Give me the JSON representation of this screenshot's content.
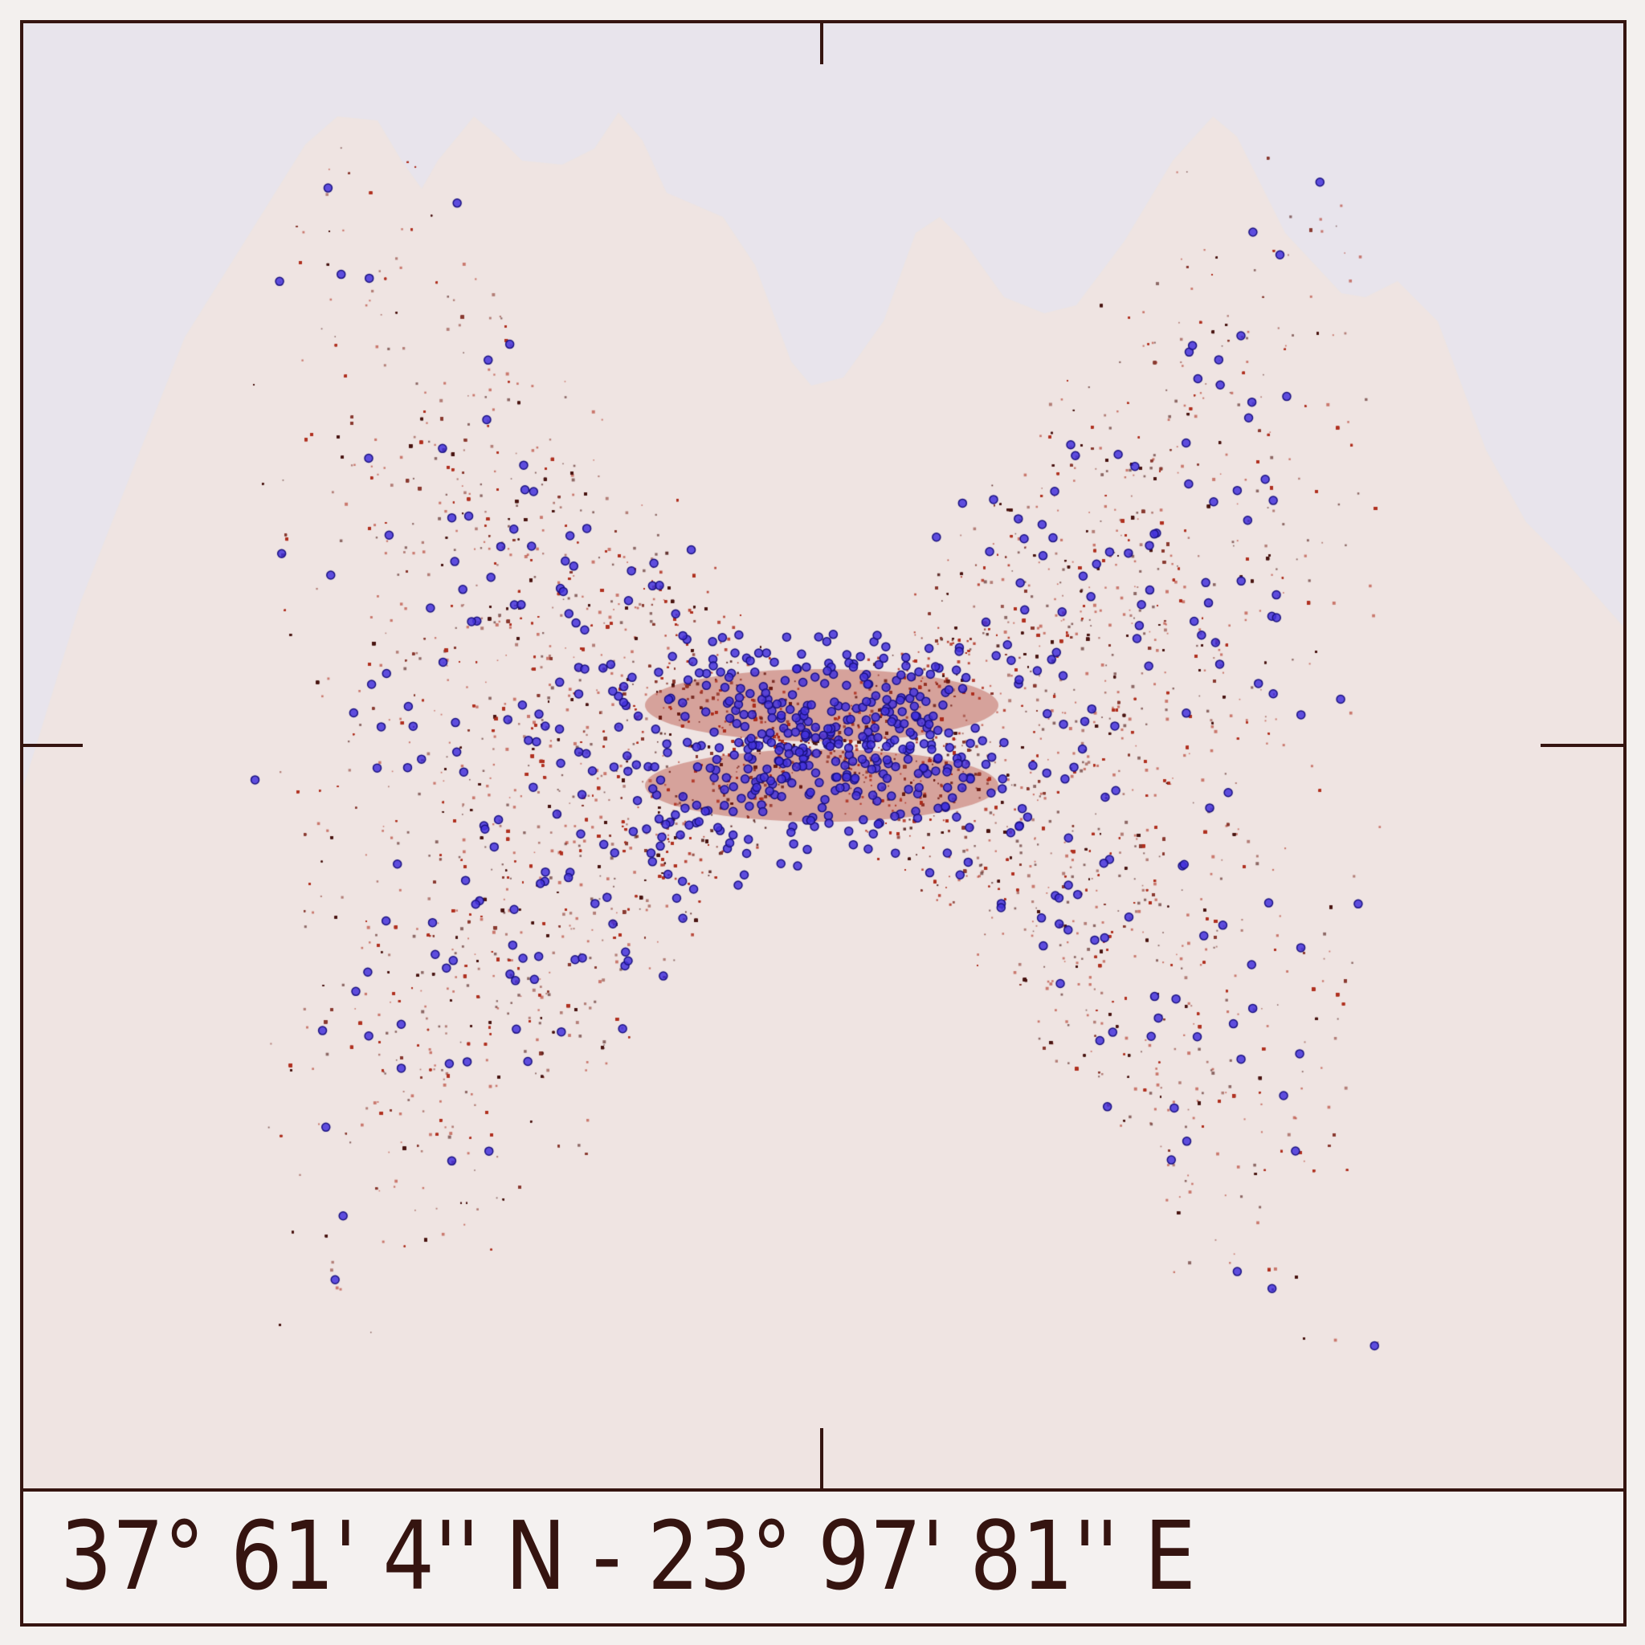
{
  "caption": {
    "coordinates": "37° 61' 4'' N - 23° 97' 81'' E"
  },
  "colors": {
    "background": "#f3f0ee",
    "sky": "#e8e4ec",
    "mountain": "#efe4e2",
    "ink": "#351410",
    "dots_red": "#b03020",
    "dots_dark": "#4a1410",
    "dots_blue": "#4433dd",
    "dots_blue_outline": "#1a1280"
  }
}
